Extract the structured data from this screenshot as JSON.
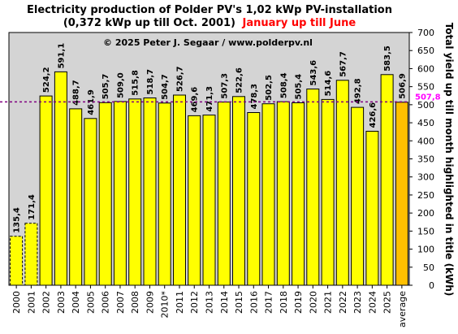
{
  "chart_data": {
    "type": "bar",
    "title_line1": "Electricity production  of Polder  PV's  1,02 kWp PV-installation",
    "title_line2_black": "(0,372 kWp up till Oct. 2001)",
    "title_line2_red": "January up till June",
    "copyright": "© 2025 Peter J. Segaar / www.polderpv.nl",
    "ylabel": "Total yield up till month highlighted in title (kWh)",
    "ylim": [
      0,
      700
    ],
    "yticks": [
      "0",
      "50",
      "100",
      "150",
      "200",
      "250",
      "300",
      "350",
      "400",
      "450",
      "500",
      "550",
      "600",
      "650",
      "700"
    ],
    "grid": false,
    "categories": [
      "2000",
      "2001",
      "2002",
      "2003",
      "2004",
      "2005",
      "2006",
      "2007",
      "2008",
      "2009",
      "2010*",
      "2011",
      "2012",
      "2013",
      "2014",
      "2015",
      "2016",
      "2017",
      "2018",
      "2019",
      "2020",
      "2021",
      "2022",
      "2023",
      "2024",
      "2025",
      "average"
    ],
    "values": [
      135.4,
      171.4,
      524.2,
      591.1,
      488.7,
      461.9,
      505.7,
      509.0,
      515.8,
      518.7,
      504.7,
      526.7,
      469.6,
      471.3,
      507.3,
      522.6,
      478.3,
      502.5,
      508.4,
      505.4,
      543.6,
      514.6,
      567.7,
      492.8,
      426.6,
      583.5,
      506.9
    ],
    "labels": [
      "135,4",
      "171,4",
      "524,2",
      "591,1",
      "488,7",
      "461,9",
      "505,7",
      "509,0",
      "515,8",
      "518,7",
      "504,7",
      "526,7",
      "469,6",
      "471,3",
      "507,3",
      "522,6",
      "478,3",
      "502,5",
      "508,4",
      "505,4",
      "543,6",
      "514,6",
      "567,7",
      "492,8",
      "426,6",
      "583,5",
      "506,9"
    ],
    "bar_styles": [
      "dashed",
      "dashed",
      "solid",
      "solid",
      "solid",
      "solid",
      "solid",
      "solid",
      "solid",
      "solid",
      "solid",
      "solid",
      "solid",
      "solid",
      "solid",
      "solid",
      "solid",
      "solid",
      "solid",
      "solid",
      "solid",
      "solid",
      "solid",
      "solid",
      "solid",
      "solid",
      "average"
    ],
    "reference_line": {
      "value": 507.8,
      "label": "507,8"
    },
    "colors": {
      "bar": "#ffff00",
      "average_bar": "#ffc000",
      "plot_bg": "#d4d4d4",
      "title_red": "#ff0000",
      "average_label": "#ff00ff",
      "reference_line": "#800080"
    }
  }
}
